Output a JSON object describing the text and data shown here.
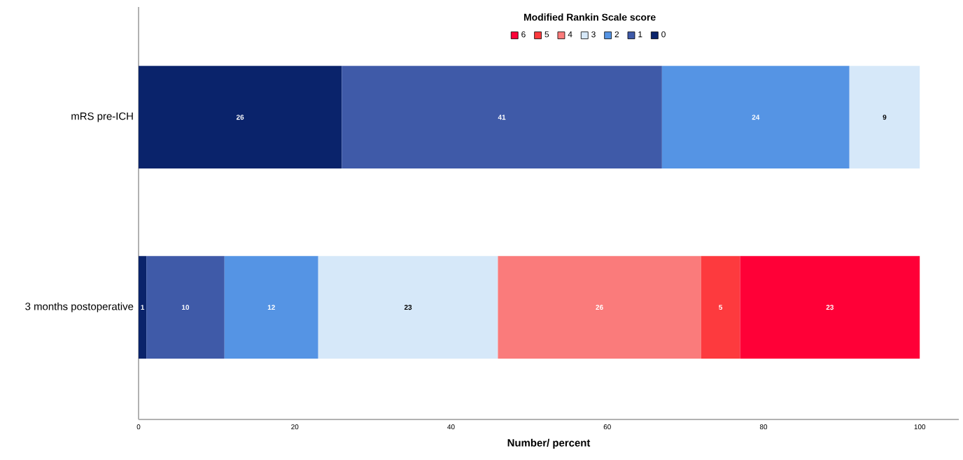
{
  "chart_data": {
    "type": "bar",
    "orientation": "horizontal",
    "stacked": true,
    "data_labels": true,
    "legend": "top",
    "legend_title": "Modified Rankin Scale score",
    "xlabel": "Number/ percent",
    "categories": [
      "mRS pre-ICH",
      "3 months postoperative"
    ],
    "xlim": [
      0,
      105
    ],
    "xticks": [
      0,
      20,
      40,
      60,
      80,
      100
    ],
    "grid": false,
    "series": [
      {
        "name": "0",
        "color": "#0a236b",
        "values": [
          26,
          1
        ]
      },
      {
        "name": "1",
        "color": "#3f5aa8",
        "values": [
          41,
          10
        ]
      },
      {
        "name": "2",
        "color": "#5594e4",
        "values": [
          24,
          12
        ]
      },
      {
        "name": "3",
        "color": "#d6e8f9",
        "values": [
          9,
          23
        ]
      },
      {
        "name": "4",
        "color": "#fa7b7b",
        "values": [
          null,
          26
        ]
      },
      {
        "name": "5",
        "color": "#fd3a3e",
        "values": [
          null,
          5
        ]
      },
      {
        "name": "6",
        "color": "#ff0037",
        "values": [
          null,
          23
        ]
      }
    ]
  }
}
